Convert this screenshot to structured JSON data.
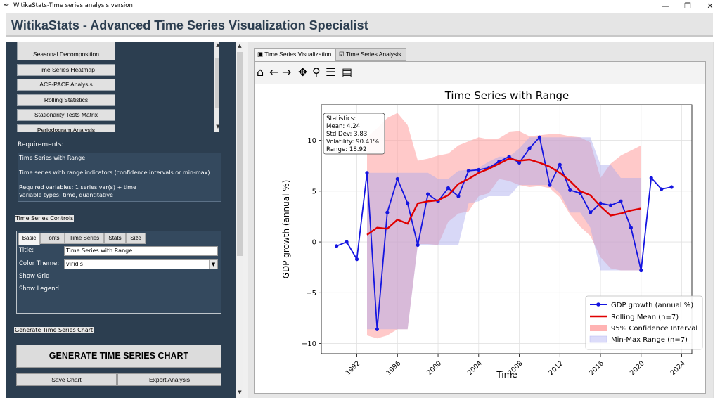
{
  "window": {
    "title": "WitikaStats-Time series analysis version",
    "minimize": "—",
    "maximize": "❐",
    "close": "✕"
  },
  "header": {
    "title": "WitikaStats - Advanced Time Series Visualization Specialist"
  },
  "chart_buttons": [
    "Seasonal Decomposition",
    "Time Series Heatmap",
    "ACF-PACF Analysis",
    "Rolling Statistics",
    "Stationarity Tests Matrix",
    "Periodogram Analysis"
  ],
  "requirements": {
    "label": "Requirements:",
    "lines": [
      "Time Series with Range",
      "",
      "Time series with range indicators (confidence intervals or min-max).",
      "",
      "Required variables: 1 series var(s) + time",
      "Variable types: time, quantitative"
    ]
  },
  "controls": {
    "label": "Time Series Controls",
    "tabs": [
      "Basic",
      "Fonts",
      "Time Series",
      "Stats",
      "Size"
    ],
    "active_tab": "Basic",
    "title_label": "Title:",
    "title_value": "Time Series with Range",
    "theme_label": "Color Theme:",
    "theme_value": "viridis",
    "show_grid": "Show Grid",
    "show_legend": "Show Legend"
  },
  "generate": {
    "label": "Generate Time Series Chart",
    "button": "GENERATE TIME SERIES CHART",
    "save": "Save Chart",
    "export": "Export Analysis"
  },
  "right_tabs": [
    "Time Series Visualization",
    "Time Series Analysis"
  ],
  "toolbar_icons": [
    "home-icon",
    "back-arrow-icon",
    "forward-arrow-icon",
    "pan-icon",
    "zoom-icon",
    "configure-icon",
    "save-icon"
  ],
  "colors": {
    "panel": "#2c3e50",
    "header_text": "#2c3e50",
    "series": "#1515e0",
    "rolling": "#e00000",
    "ci": "#ffb3b3",
    "minmax": "#b8b8f0"
  },
  "chart_data": {
    "type": "line",
    "title": "Time Series with Range",
    "xlabel": "Time",
    "ylabel": "GDP growth (annual %)",
    "xlim": [
      1988.5,
      2025
    ],
    "ylim": [
      -11,
      13.5
    ],
    "xticks": [
      1992,
      1996,
      2000,
      2004,
      2008,
      2012,
      2016,
      2020,
      2024
    ],
    "yticks": [
      -10,
      -5,
      0,
      5,
      10
    ],
    "grid": true,
    "legend_position": "lower-right",
    "stats_box": [
      "Statistics:",
      "Mean: 4.24",
      "Std Dev: 3.83",
      "Volatility: 90.41%",
      "Range: 18.92"
    ],
    "years": [
      1990,
      1991,
      1992,
      1993,
      1994,
      1995,
      1996,
      1997,
      1998,
      1999,
      2000,
      2001,
      2002,
      2003,
      2004,
      2005,
      2006,
      2007,
      2008,
      2009,
      2010,
      2011,
      2012,
      2013,
      2014,
      2015,
      2016,
      2017,
      2018,
      2019,
      2020,
      2021,
      2022,
      2023
    ],
    "series": [
      {
        "name": "GDP growth (annual %)",
        "values": [
          -0.4,
          0.0,
          -1.7,
          6.8,
          -8.6,
          2.9,
          6.2,
          3.8,
          -0.3,
          4.7,
          4.0,
          5.3,
          4.5,
          7.0,
          7.1,
          7.3,
          7.9,
          8.4,
          7.8,
          9.2,
          10.3,
          5.6,
          7.6,
          5.1,
          4.8,
          2.9,
          3.8,
          3.6,
          4.0,
          1.4,
          -2.8,
          6.3,
          5.2,
          5.4
        ]
      },
      {
        "name": "Rolling Mean (n=7)",
        "x": [
          1993,
          1994,
          1995,
          1996,
          1997,
          1998,
          1999,
          2000,
          2001,
          2002,
          2003,
          2004,
          2005,
          2006,
          2007,
          2008,
          2009,
          2010,
          2011,
          2012,
          2013,
          2014,
          2015,
          2016,
          2017,
          2018,
          2019,
          2020
        ],
        "values": [
          0.7,
          1.4,
          1.3,
          2.2,
          1.8,
          3.8,
          4.0,
          4.1,
          4.6,
          5.7,
          6.2,
          6.8,
          7.2,
          7.7,
          8.2,
          8.0,
          8.1,
          7.8,
          7.4,
          6.8,
          6.0,
          5.0,
          4.6,
          3.5,
          2.6,
          2.8,
          3.1,
          3.3
        ]
      },
      {
        "name": "95% Confidence Interval",
        "x": [
          1993,
          1994,
          1995,
          1996,
          1997,
          1998,
          1999,
          2000,
          2001,
          2002,
          2003,
          2004,
          2005,
          2006,
          2007,
          2008,
          2009,
          2010,
          2011,
          2012,
          2013,
          2014,
          2015,
          2016,
          2017,
          2018,
          2019,
          2020
        ],
        "upper": [
          10.3,
          11.2,
          12.2,
          12.7,
          11.5,
          8.0,
          8.2,
          8.5,
          8.7,
          9.5,
          9.9,
          10.3,
          10.1,
          10.2,
          10.8,
          10.9,
          10.4,
          10.5,
          10.6,
          10.6,
          10.4,
          10.3,
          9.8,
          6.3,
          7.7,
          8.5,
          9.0,
          9.5
        ],
        "lower": [
          -9.2,
          -9.5,
          -9.2,
          -8.6,
          -8.6,
          -0.2,
          -0.2,
          -0.3,
          2.0,
          2.8,
          3.0,
          4.5,
          4.8,
          6.2,
          6.0,
          5.6,
          5.4,
          5.5,
          5.3,
          4.4,
          2.7,
          1.5,
          0.6,
          -1.5,
          -2.6,
          -2.8,
          -2.8,
          -2.8
        ]
      },
      {
        "name": "Min-Max Range (n=7)",
        "x": [
          1993,
          1994,
          1995,
          1996,
          1997,
          1998,
          1999,
          2000,
          2001,
          2002,
          2003,
          2004,
          2005,
          2006,
          2007,
          2008,
          2009,
          2010,
          2011,
          2012,
          2013,
          2014,
          2015,
          2016,
          2017,
          2018,
          2019,
          2020
        ],
        "upper": [
          6.8,
          6.8,
          6.8,
          6.8,
          6.8,
          6.8,
          6.8,
          6.2,
          6.2,
          7.0,
          7.1,
          7.3,
          7.9,
          8.4,
          8.4,
          9.2,
          10.3,
          10.3,
          10.3,
          10.3,
          10.3,
          10.3,
          10.3,
          7.6,
          7.6,
          6.3,
          6.3,
          6.3
        ],
        "lower": [
          -8.6,
          -8.6,
          -8.6,
          -8.6,
          -8.6,
          -0.3,
          -0.3,
          -0.3,
          -0.3,
          -0.3,
          3.8,
          4.0,
          4.5,
          4.5,
          4.5,
          5.6,
          5.6,
          5.6,
          5.6,
          4.8,
          2.9,
          2.9,
          1.4,
          -2.8,
          -2.8,
          -2.8,
          -2.8,
          -2.8
        ]
      }
    ]
  }
}
